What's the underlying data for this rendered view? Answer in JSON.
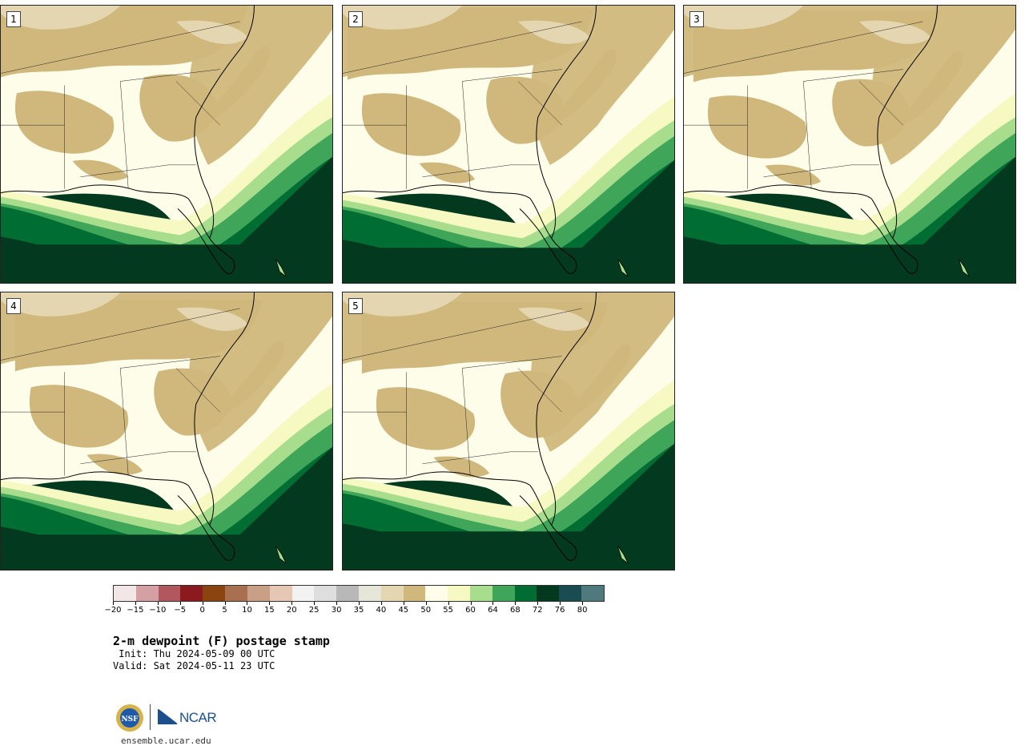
{
  "figure": {
    "title": "2-m dewpoint (F) postage stamp",
    "init": " Init: Thu 2024-05-09 00 UTC",
    "valid": "Valid: Sat 2024-05-11 23 UTC",
    "site": "ensemble.ucar.edu",
    "logo": {
      "agency": "NSF",
      "org": "NCAR"
    }
  },
  "panels": [
    {
      "label": "1"
    },
    {
      "label": "2"
    },
    {
      "label": "3"
    },
    {
      "label": "4"
    },
    {
      "label": "5"
    }
  ],
  "colorbar": {
    "tick_labels": [
      "−20",
      "−15",
      "−10",
      "−5",
      "0",
      "5",
      "10",
      "15",
      "20",
      "25",
      "30",
      "35",
      "40",
      "45",
      "50",
      "55",
      "60",
      "64",
      "68",
      "72",
      "76",
      "80"
    ],
    "colors": [
      "#f2e6e6",
      "#d4a0a4",
      "#b0585e",
      "#8b1a1e",
      "#8a4410",
      "#a8704e",
      "#c99f86",
      "#e6c6b4",
      "#f2f2f2",
      "#dedede",
      "#b8b8b8",
      "#e6e6d8",
      "#e3d6b0",
      "#d0b87c",
      "#fefde9",
      "#f6f9c2",
      "#a9dd8e",
      "#3fa659",
      "#006d32",
      "#03391f",
      "#184c50",
      "#4f7a7d"
    ]
  },
  "map_colors": {
    "dry": "#d0b87c",
    "pale": "#e3d6b0",
    "lighter": "#fefde9",
    "light": "#f6f9c2",
    "midgreen": "#a9dd8e",
    "green": "#3fa659",
    "dkgreen": "#006d32",
    "darkest": "#03391f"
  }
}
